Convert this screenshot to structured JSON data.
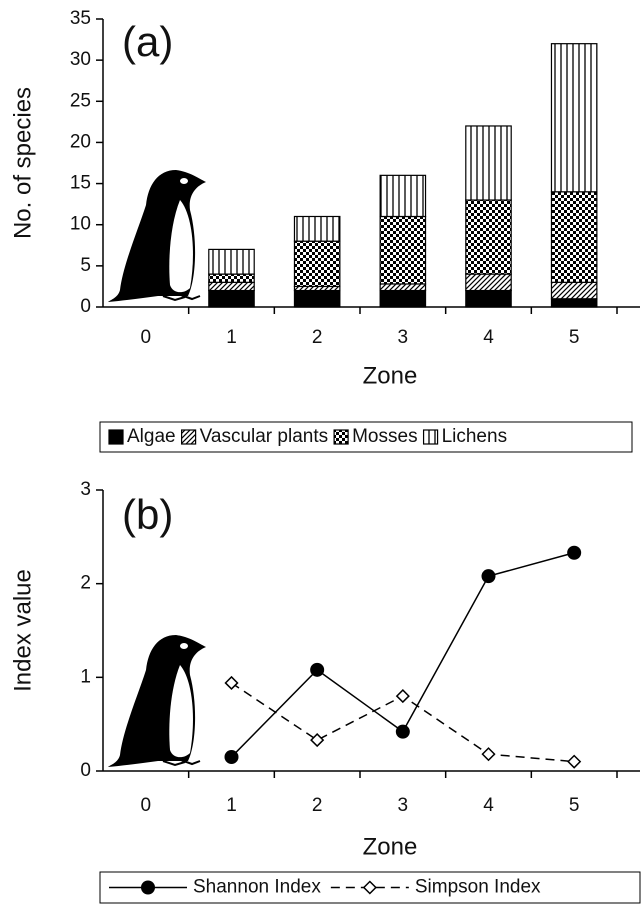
{
  "chart_data": [
    {
      "type": "bar",
      "label": "(a)",
      "stacked": true,
      "xlabel": "Zone",
      "ylabel": "No. of species",
      "categories": [
        0,
        1,
        2,
        3,
        4,
        5
      ],
      "series": [
        {
          "name": "Algae",
          "color": "#000000",
          "pattern": "solid",
          "values": [
            null,
            2,
            2,
            2,
            2,
            1
          ]
        },
        {
          "name": "Vascular plants",
          "color": "#000000",
          "pattern": "diagonal",
          "values": [
            null,
            1,
            0.5,
            0.8,
            2,
            2
          ]
        },
        {
          "name": "Mosses",
          "color": "#000000",
          "pattern": "checker",
          "values": [
            null,
            1,
            5.5,
            8.2,
            9,
            11
          ]
        },
        {
          "name": "Lichens",
          "color": "#000000",
          "pattern": "vertical",
          "values": [
            null,
            3,
            3,
            5,
            9,
            18
          ]
        }
      ],
      "ylim": [
        0,
        35
      ],
      "yticks": [
        0,
        5,
        10,
        15,
        20,
        25,
        30,
        35
      ],
      "legend": "bottom"
    },
    {
      "type": "line",
      "label": "(b)",
      "xlabel": "Zone",
      "ylabel": "Index value",
      "categories": [
        0,
        1,
        2,
        3,
        4,
        5
      ],
      "series": [
        {
          "name": "Shannon Index",
          "color": "#000000",
          "marker": "circle",
          "dash": "solid",
          "values": [
            null,
            0.15,
            1.08,
            0.42,
            2.08,
            2.33
          ]
        },
        {
          "name": "Simpson Index",
          "color": "#000000",
          "marker": "diamond",
          "dash": "dashed",
          "values": [
            null,
            0.94,
            0.33,
            0.8,
            0.18,
            0.1
          ]
        }
      ],
      "ylim": [
        0,
        3
      ],
      "yticks": [
        0,
        1,
        2,
        3
      ],
      "legend": "bottom"
    }
  ]
}
